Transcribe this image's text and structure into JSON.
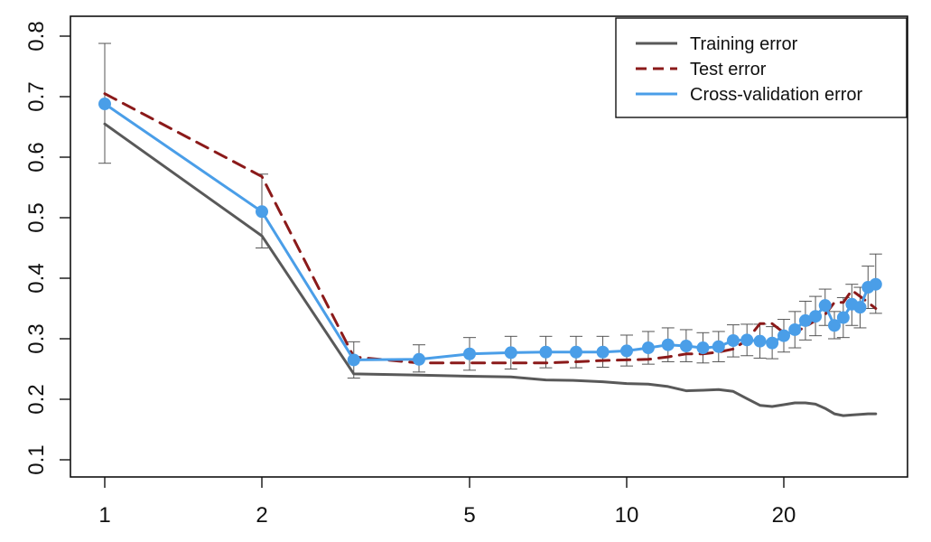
{
  "chart_data": {
    "type": "line",
    "title": "",
    "xlabel": "",
    "ylabel": "",
    "x_scale": "log",
    "xlim": [
      1,
      30
    ],
    "ylim": [
      0.1,
      0.8
    ],
    "x_ticks": [
      1,
      2,
      5,
      10,
      20
    ],
    "x_tick_labels": [
      "1",
      "2",
      "5",
      "10",
      "20"
    ],
    "y_ticks": [
      0.1,
      0.2,
      0.3,
      0.4,
      0.5,
      0.6,
      0.7,
      0.8
    ],
    "y_tick_labels": [
      "0.1",
      "0.2",
      "0.3",
      "0.4",
      "0.5",
      "0.6",
      "0.7",
      "0.8"
    ],
    "grid": false,
    "legend_position": "top-right",
    "x": [
      1,
      2,
      3,
      4,
      5,
      6,
      7,
      8,
      9,
      10,
      11,
      12,
      13,
      14,
      15,
      16,
      17,
      18,
      19,
      20,
      21,
      22,
      23,
      24,
      25,
      26,
      27,
      28,
      29,
      30
    ],
    "series": [
      {
        "name": "Training error",
        "color": "#595959",
        "style": "solid",
        "values": [
          0.655,
          0.47,
          0.242,
          0.24,
          0.238,
          0.237,
          0.232,
          0.231,
          0.229,
          0.226,
          0.225,
          0.221,
          0.214,
          0.215,
          0.216,
          0.213,
          0.201,
          0.19,
          0.188,
          0.191,
          0.194,
          0.194,
          0.192,
          0.185,
          0.176,
          0.173,
          0.174,
          0.175,
          0.176,
          0.176
        ]
      },
      {
        "name": "Test error",
        "color": "#8b1a1a",
        "style": "dashed",
        "values": [
          0.705,
          0.568,
          0.27,
          0.26,
          0.26,
          0.26,
          0.26,
          0.262,
          0.264,
          0.265,
          0.266,
          0.27,
          0.275,
          0.275,
          0.278,
          0.283,
          0.298,
          0.325,
          0.325,
          0.31,
          0.31,
          0.32,
          0.33,
          0.34,
          0.36,
          0.36,
          0.38,
          0.37,
          0.36,
          0.35
        ]
      },
      {
        "name": "Cross-validation error",
        "color": "#4a9ee8",
        "style": "solid",
        "markers": true,
        "values": [
          0.688,
          0.51,
          0.265,
          0.266,
          0.275,
          0.277,
          0.278,
          0.278,
          0.278,
          0.28,
          0.285,
          0.29,
          0.288,
          0.285,
          0.287,
          0.297,
          0.298,
          0.296,
          0.293,
          0.305,
          0.315,
          0.33,
          0.337,
          0.355,
          0.322,
          0.335,
          0.357,
          0.352,
          0.385,
          0.39
        ],
        "error_low": [
          0.59,
          0.45,
          0.235,
          0.245,
          0.248,
          0.25,
          0.252,
          0.252,
          0.253,
          0.255,
          0.258,
          0.262,
          0.262,
          0.26,
          0.262,
          0.27,
          0.272,
          0.268,
          0.267,
          0.278,
          0.285,
          0.298,
          0.305,
          0.322,
          0.3,
          0.302,
          0.322,
          0.318,
          0.35,
          0.342
        ],
        "error_high": [
          0.788,
          0.572,
          0.295,
          0.29,
          0.302,
          0.304,
          0.304,
          0.304,
          0.304,
          0.306,
          0.312,
          0.318,
          0.315,
          0.31,
          0.312,
          0.323,
          0.324,
          0.324,
          0.32,
          0.332,
          0.345,
          0.362,
          0.37,
          0.382,
          0.345,
          0.368,
          0.39,
          0.385,
          0.42,
          0.44
        ]
      }
    ]
  }
}
